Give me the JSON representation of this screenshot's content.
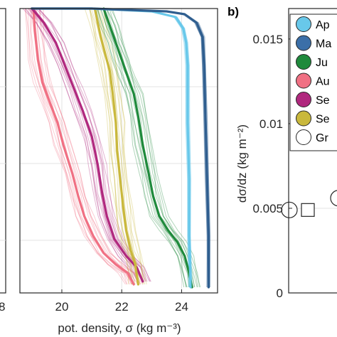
{
  "chart_data": [
    {
      "panel": "left-edge",
      "type": "line",
      "xtick_labels": [
        "8"
      ],
      "note": "",
      "ylim": [
        0,
        1
      ],
      "grid": true
    },
    {
      "panel": "a",
      "type": "line",
      "xlabel": "pot. density, σ (kg m⁻³)",
      "xlim": [
        18.6,
        25.2
      ],
      "ylim": [
        1,
        0
      ],
      "xticks": [
        20,
        22,
        24
      ],
      "xtick_labels": [
        "20",
        "22",
        "24"
      ],
      "grid": true,
      "series": [
        {
          "color": "#f07083",
          "points": [
            [
              19.05,
              0.0
            ],
            [
              19.1,
              0.08
            ],
            [
              19.2,
              0.18
            ],
            [
              19.35,
              0.26
            ],
            [
              19.6,
              0.33
            ],
            [
              19.85,
              0.4
            ],
            [
              20.05,
              0.48
            ],
            [
              20.35,
              0.58
            ],
            [
              20.55,
              0.66
            ],
            [
              20.75,
              0.73
            ],
            [
              21.05,
              0.8
            ],
            [
              21.4,
              0.86
            ],
            [
              21.8,
              0.9
            ],
            [
              22.2,
              0.93
            ],
            [
              22.4,
              0.97
            ]
          ]
        },
        {
          "color": "#b0287e",
          "points": [
            [
              19.0,
              0.0
            ],
            [
              19.4,
              0.05
            ],
            [
              19.8,
              0.12
            ],
            [
              20.1,
              0.2
            ],
            [
              20.4,
              0.28
            ],
            [
              20.7,
              0.36
            ],
            [
              21.0,
              0.45
            ],
            [
              21.2,
              0.55
            ],
            [
              21.35,
              0.65
            ],
            [
              21.5,
              0.73
            ],
            [
              21.75,
              0.81
            ],
            [
              22.15,
              0.87
            ],
            [
              22.5,
              0.91
            ],
            [
              22.7,
              0.96
            ]
          ]
        },
        {
          "color": "#c9b83c",
          "points": [
            [
              21.1,
              0.0
            ],
            [
              21.2,
              0.05
            ],
            [
              21.3,
              0.1
            ],
            [
              21.45,
              0.16
            ],
            [
              21.6,
              0.22
            ],
            [
              21.7,
              0.3
            ],
            [
              21.8,
              0.4
            ],
            [
              21.85,
              0.5
            ],
            [
              21.95,
              0.6
            ],
            [
              22.05,
              0.7
            ],
            [
              22.15,
              0.78
            ],
            [
              22.3,
              0.85
            ],
            [
              22.45,
              0.9
            ],
            [
              22.55,
              0.97
            ]
          ]
        },
        {
          "color": "#1f8a3c",
          "points": [
            [
              21.4,
              0.0
            ],
            [
              21.6,
              0.06
            ],
            [
              21.8,
              0.12
            ],
            [
              22.0,
              0.18
            ],
            [
              22.2,
              0.24
            ],
            [
              22.4,
              0.3
            ],
            [
              22.55,
              0.38
            ],
            [
              22.7,
              0.48
            ],
            [
              22.9,
              0.58
            ],
            [
              23.05,
              0.66
            ],
            [
              23.25,
              0.73
            ],
            [
              23.55,
              0.78
            ],
            [
              23.85,
              0.82
            ],
            [
              24.1,
              0.87
            ],
            [
              24.25,
              0.93
            ],
            [
              24.35,
              0.98
            ]
          ]
        },
        {
          "color": "#68c8ea",
          "points": [
            [
              19.3,
              0.0
            ],
            [
              21.0,
              0.0
            ],
            [
              23.0,
              0.01
            ],
            [
              23.8,
              0.03
            ],
            [
              24.05,
              0.07
            ],
            [
              24.15,
              0.12
            ],
            [
              24.2,
              0.2
            ],
            [
              24.2,
              0.4
            ],
            [
              24.25,
              0.6
            ],
            [
              24.25,
              0.8
            ],
            [
              24.3,
              0.98
            ]
          ]
        },
        {
          "color": "#2f5e8f",
          "points": [
            [
              19.0,
              0.0
            ],
            [
              21.0,
              0.0
            ],
            [
              23.5,
              0.01
            ],
            [
              24.1,
              0.02
            ],
            [
              24.5,
              0.05
            ],
            [
              24.7,
              0.1
            ],
            [
              24.75,
              0.2
            ],
            [
              24.8,
              0.4
            ],
            [
              24.85,
              0.6
            ],
            [
              24.9,
              0.8
            ],
            [
              24.9,
              0.98
            ]
          ]
        }
      ]
    },
    {
      "panel": "b",
      "type": "scatter",
      "label": "b)",
      "ylabel": "dσ/dz (kg m⁻²)",
      "ylim": [
        0,
        0.0168
      ],
      "yticks": [
        0,
        0.005,
        0.01,
        0.015
      ],
      "ytick_labels": [
        "0",
        "0.005",
        "0.01",
        "0.015"
      ],
      "grid": true,
      "legend": {
        "placement": "top-right",
        "entries": [
          {
            "label": "Ap",
            "color": "#68c8ea"
          },
          {
            "label": "Ma",
            "color": "#3b6fa8"
          },
          {
            "label": "Ju",
            "color": "#1f8a3c"
          },
          {
            "label": "Au",
            "color": "#f07083"
          },
          {
            "label": "Se",
            "color": "#b0287e"
          },
          {
            "label": "Se",
            "color": "#c9b83c"
          },
          {
            "label": "Gr",
            "color": "#ffffff"
          }
        ]
      },
      "points": [
        {
          "marker": "circle",
          "y": 0.0049,
          "fill": "#ffffff"
        },
        {
          "marker": "square",
          "y": 0.0049,
          "fill": "#ffffff"
        },
        {
          "marker": "circle",
          "y": 0.0056,
          "fill": "#ffffff"
        }
      ]
    }
  ]
}
